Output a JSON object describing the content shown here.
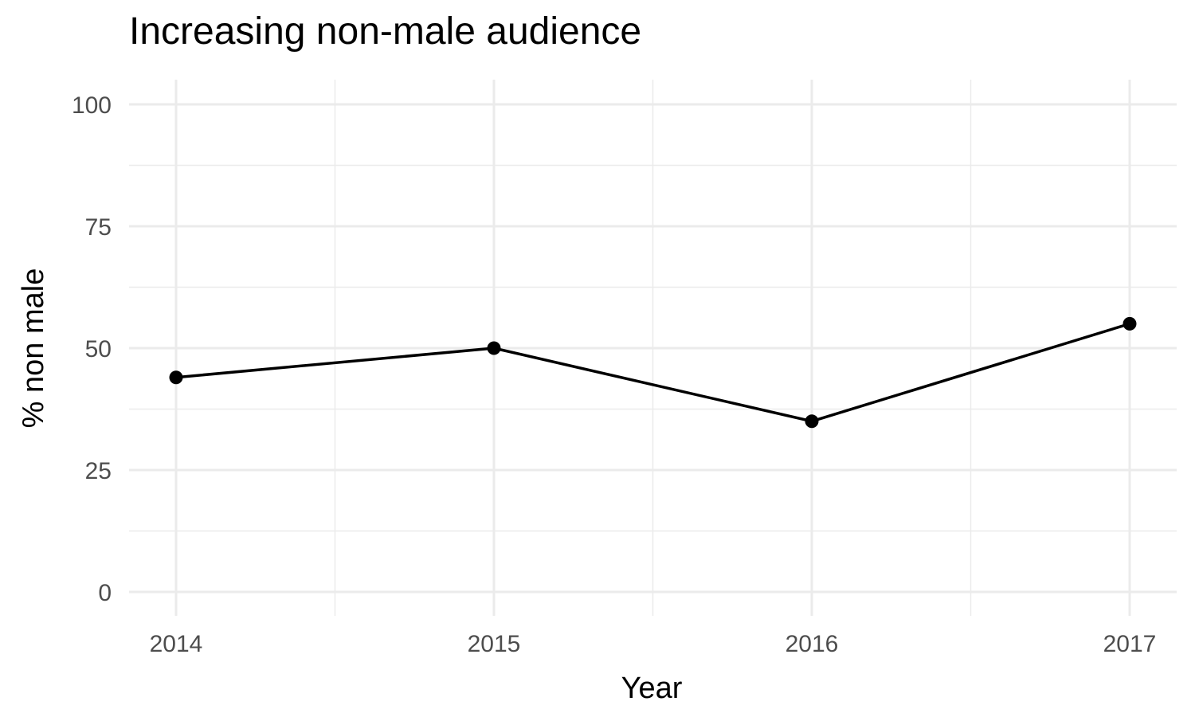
{
  "chart_data": {
    "type": "line",
    "title": "Increasing non-male audience",
    "xlabel": "Year",
    "ylabel": "% non male",
    "x": [
      2014,
      2015,
      2016,
      2017
    ],
    "y": [
      44,
      50,
      35,
      55
    ],
    "xticks": [
      "2014",
      "2015",
      "2016",
      "2017"
    ],
    "yticks": [
      "0",
      "25",
      "50",
      "75",
      "100"
    ],
    "ylim": [
      0,
      100
    ],
    "xlim": [
      2014,
      2017
    ],
    "grid": true,
    "line_color": "#000000",
    "grid_color": "#ebebeb"
  }
}
